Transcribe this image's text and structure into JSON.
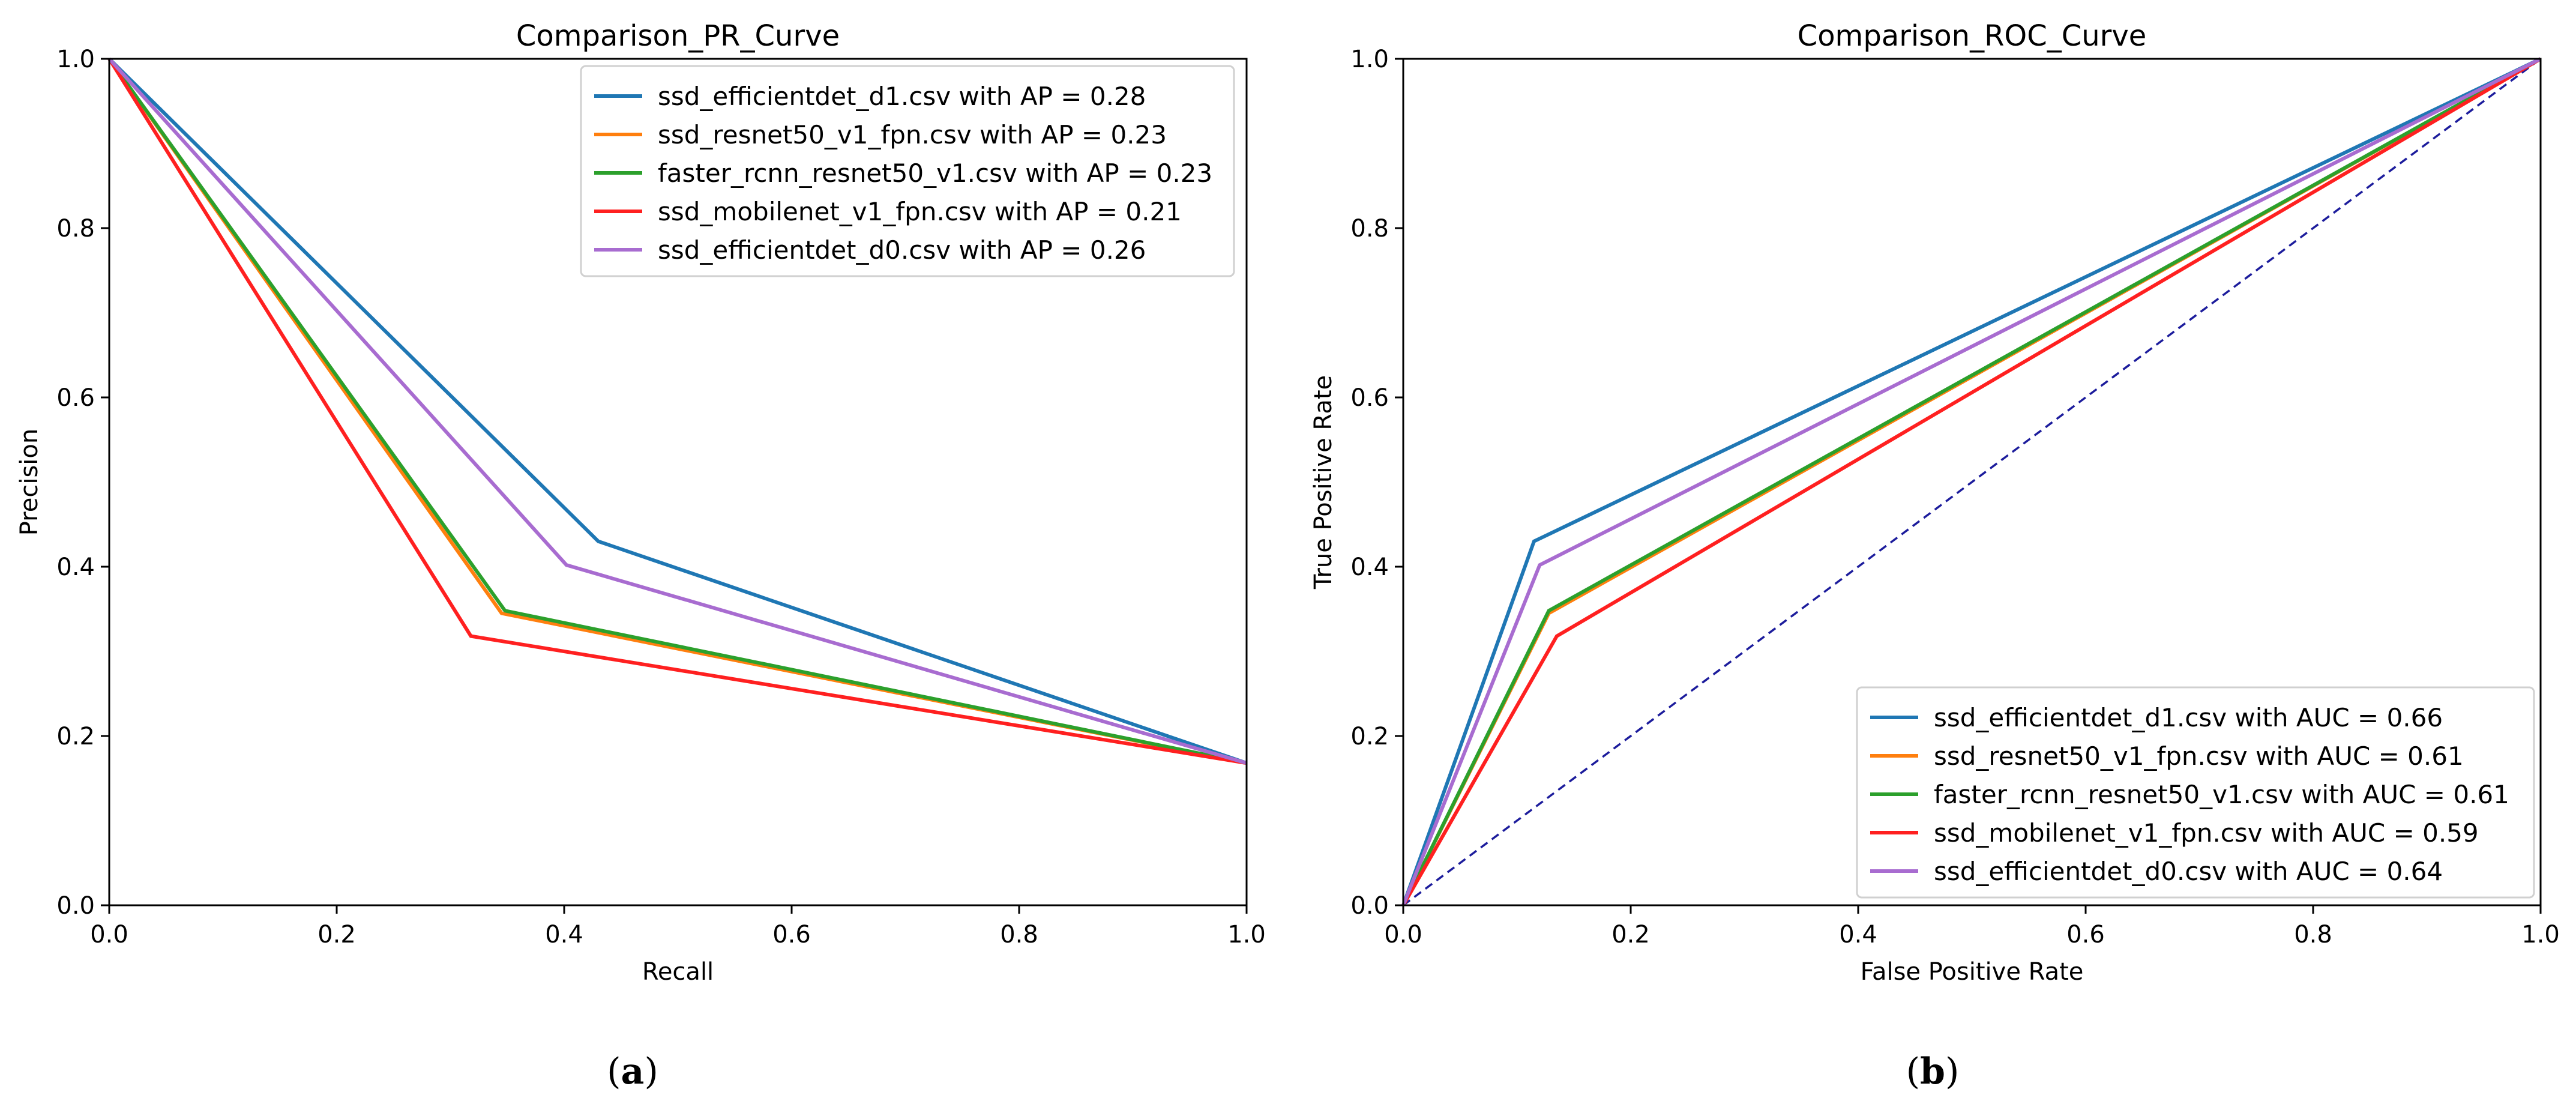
{
  "chart_data": [
    {
      "type": "line",
      "title": "Comparison_PR_Curve",
      "xlabel": "Recall",
      "ylabel": "Precision",
      "xlim": [
        0,
        1
      ],
      "ylim": [
        0,
        1
      ],
      "xticks": [
        "0.0",
        "0.2",
        "0.4",
        "0.6",
        "0.8",
        "1.0"
      ],
      "yticks": [
        "0.0",
        "0.2",
        "0.4",
        "0.6",
        "0.8",
        "1.0"
      ],
      "grid": false,
      "legend_position": "top-right",
      "caption": {
        "open": "(",
        "letter": "a",
        "close": ")"
      },
      "series": [
        {
          "name": "ssd_efficientdet_d1.csv with AP = 0.28",
          "color": "#1f77b4",
          "x": [
            0,
            0.43,
            1
          ],
          "y": [
            1,
            0.43,
            0.168
          ]
        },
        {
          "name": "ssd_resnet50_v1_fpn.csv with AP = 0.23",
          "color": "#ff7f0e",
          "x": [
            0,
            0.345,
            1
          ],
          "y": [
            1,
            0.345,
            0.168
          ]
        },
        {
          "name": "faster_rcnn_resnet50_v1.csv with AP = 0.23",
          "color": "#2ca02c",
          "x": [
            0,
            0.348,
            1
          ],
          "y": [
            1,
            0.348,
            0.168
          ]
        },
        {
          "name": "ssd_mobilenet_v1_fpn.csv with AP = 0.21",
          "color": "#ff2020",
          "x": [
            0,
            0.318,
            1
          ],
          "y": [
            1,
            0.318,
            0.168
          ]
        },
        {
          "name": "ssd_efficientdet_d0.csv with AP = 0.26",
          "color": "#a86cd0",
          "x": [
            0,
            0.402,
            1
          ],
          "y": [
            1,
            0.402,
            0.168
          ]
        }
      ]
    },
    {
      "type": "line",
      "title": "Comparison_ROC_Curve",
      "xlabel": "False Positive Rate",
      "ylabel": "True Positive Rate",
      "xlim": [
        0,
        1
      ],
      "ylim": [
        0,
        1
      ],
      "xticks": [
        "0.0",
        "0.2",
        "0.4",
        "0.6",
        "0.8",
        "1.0"
      ],
      "yticks": [
        "0.0",
        "0.2",
        "0.4",
        "0.6",
        "0.8",
        "1.0"
      ],
      "grid": false,
      "legend_position": "bottom-right",
      "caption": {
        "open": "(",
        "letter": "b",
        "close": ")"
      },
      "diagonal": {
        "color": "#1c1c9c",
        "x": [
          0,
          1
        ],
        "y": [
          0,
          1
        ]
      },
      "series": [
        {
          "name": "ssd_efficientdet_d1.csv with AUC = 0.66",
          "color": "#1f77b4",
          "x": [
            0,
            0.115,
            1
          ],
          "y": [
            0,
            0.43,
            1
          ]
        },
        {
          "name": "ssd_resnet50_v1_fpn.csv with AUC = 0.61",
          "color": "#ff7f0e",
          "x": [
            0,
            0.128,
            1
          ],
          "y": [
            0,
            0.345,
            1
          ]
        },
        {
          "name": "faster_rcnn_resnet50_v1.csv with AUC = 0.61",
          "color": "#2ca02c",
          "x": [
            0,
            0.128,
            1
          ],
          "y": [
            0,
            0.348,
            1
          ]
        },
        {
          "name": "ssd_mobilenet_v1_fpn.csv with AUC = 0.59",
          "color": "#ff2020",
          "x": [
            0,
            0.135,
            1
          ],
          "y": [
            0,
            0.318,
            1
          ]
        },
        {
          "name": "ssd_efficientdet_d0.csv with AUC = 0.64",
          "color": "#a86cd0",
          "x": [
            0,
            0.12,
            1
          ],
          "y": [
            0,
            0.402,
            1
          ]
        }
      ]
    }
  ]
}
